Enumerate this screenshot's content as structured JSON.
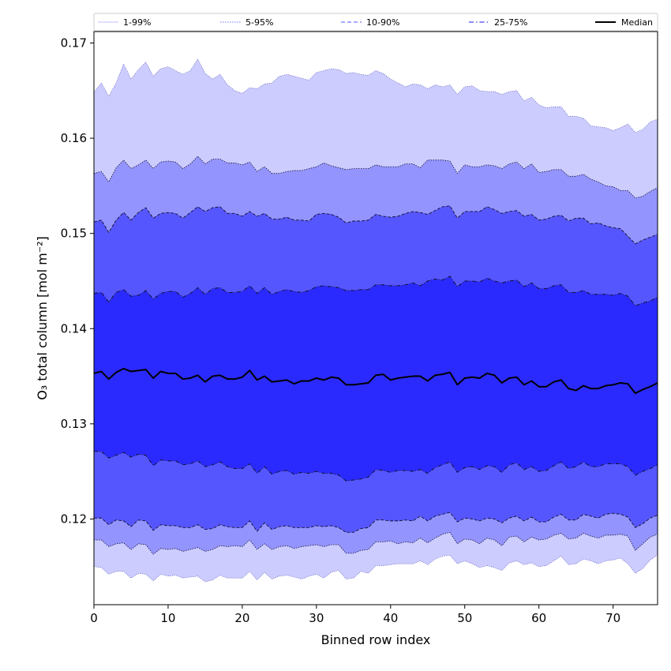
{
  "chart_data": {
    "type": "area",
    "title": "",
    "xlabel": "Binned row index",
    "ylabel": "O₃ total column [mol m⁻²]",
    "xlim": [
      0,
      76
    ],
    "ylim": [
      0.111,
      0.1712
    ],
    "xticks": [
      0,
      10,
      20,
      30,
      40,
      50,
      60,
      70
    ],
    "yticks": [
      0.12,
      0.13,
      0.14,
      0.15,
      0.16,
      0.17
    ],
    "ytick_labels": [
      "0.12",
      "0.13",
      "0.14",
      "0.15",
      "0.16",
      "0.17"
    ],
    "grid": false,
    "legend_position": "top",
    "legend": [
      "1-99%",
      "5-95%",
      "10-90%",
      "25-75%",
      "Median"
    ],
    "colors": {
      "band_1_99": "#ccccff",
      "band_5_95": "#9494ff",
      "band_10_90": "#5656ff",
      "band_25_75": "#2a2aff",
      "median": "#000000",
      "edge": "#111133"
    },
    "x_start": 0,
    "x_step": 1,
    "series": [
      {
        "name": "p99",
        "values": [
          0.1648,
          0.1658,
          0.1644,
          0.1658,
          0.1678,
          0.1662,
          0.1672,
          0.168,
          0.1665,
          0.1673,
          0.1675,
          0.1671,
          0.1667,
          0.1671,
          0.1683,
          0.1668,
          0.1662,
          0.1667,
          0.1656,
          0.165,
          0.1647,
          0.1653,
          0.1652,
          0.1657,
          0.1658,
          0.1665,
          0.1667,
          0.1665,
          0.1663,
          0.1661,
          0.1669,
          0.1671,
          0.1673,
          0.1672,
          0.1668,
          0.1669,
          0.1667,
          0.1666,
          0.1671,
          0.1668,
          0.1662,
          0.1658,
          0.1654,
          0.1657,
          0.1656,
          0.1652,
          0.1656,
          0.1654,
          0.1656,
          0.1646,
          0.1654,
          0.1655,
          0.165,
          0.1649,
          0.1649,
          0.1646,
          0.1649,
          0.165,
          0.1639,
          0.1643,
          0.1635,
          0.1632,
          0.1633,
          0.1633,
          0.1623,
          0.1623,
          0.1621,
          0.1613,
          0.1612,
          0.1611,
          0.1608,
          0.1611,
          0.1615,
          0.1606,
          0.1609,
          0.1617,
          0.162
        ]
      },
      {
        "name": "p95",
        "values": [
          0.1563,
          0.1565,
          0.1554,
          0.1569,
          0.1577,
          0.1568,
          0.1572,
          0.1577,
          0.1568,
          0.1575,
          0.1576,
          0.1575,
          0.1568,
          0.1573,
          0.1581,
          0.1573,
          0.1578,
          0.1578,
          0.1574,
          0.1574,
          0.1572,
          0.1575,
          0.1565,
          0.157,
          0.1563,
          0.1563,
          0.1565,
          0.1566,
          0.1566,
          0.1568,
          0.157,
          0.1574,
          0.1571,
          0.1569,
          0.1567,
          0.1568,
          0.1568,
          0.1568,
          0.1572,
          0.157,
          0.157,
          0.157,
          0.1573,
          0.1573,
          0.1569,
          0.1577,
          0.1577,
          0.1577,
          0.1576,
          0.1563,
          0.1572,
          0.157,
          0.157,
          0.1572,
          0.1571,
          0.1568,
          0.1573,
          0.1575,
          0.1568,
          0.1573,
          0.1564,
          0.1565,
          0.1567,
          0.1567,
          0.156,
          0.156,
          0.1562,
          0.1557,
          0.1554,
          0.155,
          0.1549,
          0.1545,
          0.1545,
          0.1537,
          0.1539,
          0.1544,
          0.1548
        ]
      },
      {
        "name": "p90",
        "values": [
          0.1512,
          0.1514,
          0.1501,
          0.1514,
          0.1522,
          0.1514,
          0.1522,
          0.1527,
          0.1516,
          0.1521,
          0.1522,
          0.1521,
          0.1516,
          0.1522,
          0.1528,
          0.1523,
          0.1527,
          0.1528,
          0.1521,
          0.1521,
          0.1518,
          0.1523,
          0.1518,
          0.1521,
          0.1515,
          0.1515,
          0.1517,
          0.1514,
          0.1514,
          0.1513,
          0.152,
          0.1521,
          0.152,
          0.1517,
          0.1511,
          0.1513,
          0.1513,
          0.1514,
          0.152,
          0.1518,
          0.1517,
          0.1518,
          0.1521,
          0.1523,
          0.1522,
          0.152,
          0.1524,
          0.1528,
          0.1529,
          0.1516,
          0.1523,
          0.1523,
          0.1523,
          0.1528,
          0.1525,
          0.1521,
          0.1523,
          0.1524,
          0.1518,
          0.152,
          0.1514,
          0.1515,
          0.1518,
          0.1519,
          0.1513,
          0.1516,
          0.1516,
          0.151,
          0.1511,
          0.1508,
          0.1506,
          0.1505,
          0.1497,
          0.1489,
          0.1493,
          0.1496,
          0.1499
        ]
      },
      {
        "name": "p75",
        "values": [
          0.1437,
          0.1438,
          0.1428,
          0.1438,
          0.1441,
          0.1434,
          0.1435,
          0.144,
          0.1431,
          0.1437,
          0.1439,
          0.1439,
          0.1433,
          0.1437,
          0.1443,
          0.1436,
          0.1442,
          0.1443,
          0.1438,
          0.1438,
          0.1439,
          0.1445,
          0.1437,
          0.1443,
          0.1436,
          0.1439,
          0.1441,
          0.1439,
          0.1438,
          0.144,
          0.1444,
          0.1445,
          0.1444,
          0.1443,
          0.144,
          0.144,
          0.1441,
          0.1441,
          0.1446,
          0.1446,
          0.1445,
          0.1445,
          0.1446,
          0.1448,
          0.1445,
          0.145,
          0.1452,
          0.1451,
          0.1455,
          0.1444,
          0.145,
          0.145,
          0.1449,
          0.1453,
          0.145,
          0.1448,
          0.145,
          0.1451,
          0.1444,
          0.1448,
          0.1442,
          0.1442,
          0.1445,
          0.1446,
          0.1438,
          0.1438,
          0.144,
          0.1436,
          0.1436,
          0.1436,
          0.1435,
          0.1437,
          0.1434,
          0.1424,
          0.1427,
          0.1429,
          0.1433
        ]
      },
      {
        "name": "median",
        "values": [
          0.1353,
          0.1355,
          0.1347,
          0.1354,
          0.1358,
          0.1355,
          0.1356,
          0.1357,
          0.1348,
          0.1355,
          0.1353,
          0.1353,
          0.1347,
          0.1348,
          0.1351,
          0.1344,
          0.135,
          0.1351,
          0.1347,
          0.1347,
          0.1349,
          0.1356,
          0.1346,
          0.135,
          0.1344,
          0.1345,
          0.1346,
          0.1342,
          0.1345,
          0.1345,
          0.1348,
          0.1346,
          0.1349,
          0.1348,
          0.1341,
          0.1341,
          0.1342,
          0.1343,
          0.1351,
          0.1352,
          0.1346,
          0.1348,
          0.1349,
          0.135,
          0.135,
          0.1345,
          0.1351,
          0.1352,
          0.1354,
          0.1341,
          0.1348,
          0.1349,
          0.1348,
          0.1353,
          0.1351,
          0.1343,
          0.1348,
          0.1349,
          0.1341,
          0.1345,
          0.1339,
          0.1339,
          0.1344,
          0.1346,
          0.1337,
          0.1335,
          0.134,
          0.1337,
          0.1337,
          0.134,
          0.1341,
          0.1343,
          0.1342,
          0.1332,
          0.1336,
          0.1339,
          0.1343
        ]
      },
      {
        "name": "p25",
        "values": [
          0.1271,
          0.1271,
          0.1264,
          0.1267,
          0.127,
          0.1265,
          0.1268,
          0.1267,
          0.1256,
          0.1262,
          0.1261,
          0.1261,
          0.1257,
          0.1258,
          0.1261,
          0.1255,
          0.1257,
          0.126,
          0.1255,
          0.1253,
          0.1253,
          0.1258,
          0.1248,
          0.1255,
          0.1247,
          0.125,
          0.1251,
          0.1247,
          0.1249,
          0.1248,
          0.125,
          0.1248,
          0.1248,
          0.1246,
          0.124,
          0.1241,
          0.1242,
          0.1244,
          0.1252,
          0.1251,
          0.1249,
          0.1251,
          0.1251,
          0.125,
          0.1252,
          0.1248,
          0.1254,
          0.1257,
          0.126,
          0.1249,
          0.1254,
          0.1255,
          0.1252,
          0.1256,
          0.1255,
          0.1249,
          0.1257,
          0.1259,
          0.1252,
          0.1255,
          0.125,
          0.1251,
          0.1256,
          0.126,
          0.1253,
          0.1255,
          0.126,
          0.1255,
          0.1255,
          0.1258,
          0.1258,
          0.1258,
          0.1255,
          0.1246,
          0.125,
          0.1253,
          0.1257
        ]
      },
      {
        "name": "p10",
        "values": [
          0.1201,
          0.1201,
          0.1194,
          0.1199,
          0.1198,
          0.1192,
          0.1199,
          0.1198,
          0.1188,
          0.1194,
          0.1193,
          0.1193,
          0.1191,
          0.1191,
          0.1194,
          0.1189,
          0.119,
          0.1194,
          0.1192,
          0.1191,
          0.1191,
          0.1198,
          0.1187,
          0.1196,
          0.1189,
          0.1192,
          0.1193,
          0.1191,
          0.1191,
          0.1191,
          0.1193,
          0.1192,
          0.1193,
          0.1191,
          0.1186,
          0.1186,
          0.119,
          0.1191,
          0.1199,
          0.1199,
          0.1198,
          0.1198,
          0.1199,
          0.1198,
          0.1203,
          0.1198,
          0.1203,
          0.1205,
          0.1207,
          0.1197,
          0.1201,
          0.12,
          0.1198,
          0.1201,
          0.12,
          0.1196,
          0.1201,
          0.1203,
          0.1198,
          0.1202,
          0.1197,
          0.1197,
          0.1202,
          0.1205,
          0.1199,
          0.1199,
          0.1205,
          0.1203,
          0.1201,
          0.1205,
          0.1206,
          0.1205,
          0.1202,
          0.1191,
          0.1195,
          0.1201,
          0.1204
        ]
      },
      {
        "name": "p5",
        "values": [
          0.1178,
          0.1178,
          0.1171,
          0.1174,
          0.1175,
          0.1168,
          0.1174,
          0.1173,
          0.1163,
          0.1169,
          0.1168,
          0.1169,
          0.1166,
          0.1168,
          0.117,
          0.1166,
          0.1168,
          0.1172,
          0.1171,
          0.1172,
          0.1171,
          0.1178,
          0.1168,
          0.1174,
          0.1168,
          0.1171,
          0.1172,
          0.1169,
          0.1171,
          0.1172,
          0.1173,
          0.1171,
          0.1173,
          0.1173,
          0.1164,
          0.1164,
          0.1167,
          0.1168,
          0.1176,
          0.1176,
          0.1177,
          0.1174,
          0.1176,
          0.1175,
          0.118,
          0.1175,
          0.118,
          0.1184,
          0.1186,
          0.1174,
          0.1179,
          0.1178,
          0.1174,
          0.118,
          0.1178,
          0.1172,
          0.1181,
          0.1182,
          0.1176,
          0.1181,
          0.1178,
          0.1179,
          0.1183,
          0.1185,
          0.1179,
          0.118,
          0.1185,
          0.1182,
          0.118,
          0.1183,
          0.1183,
          0.1184,
          0.1182,
          0.1167,
          0.1174,
          0.1181,
          0.1184
        ]
      },
      {
        "name": "p1",
        "values": [
          0.115,
          0.1149,
          0.1142,
          0.1145,
          0.1145,
          0.1138,
          0.1143,
          0.1142,
          0.1135,
          0.1142,
          0.114,
          0.1141,
          0.1138,
          0.1139,
          0.114,
          0.1134,
          0.1136,
          0.1141,
          0.1138,
          0.1138,
          0.1138,
          0.1145,
          0.1136,
          0.1144,
          0.1137,
          0.114,
          0.1141,
          0.1139,
          0.1137,
          0.114,
          0.1142,
          0.1138,
          0.1144,
          0.1146,
          0.1137,
          0.1138,
          0.1145,
          0.1143,
          0.1151,
          0.1151,
          0.1152,
          0.1153,
          0.1153,
          0.1153,
          0.1156,
          0.1152,
          0.1158,
          0.1161,
          0.1162,
          0.1153,
          0.1156,
          0.1153,
          0.1149,
          0.1151,
          0.1149,
          0.1146,
          0.1154,
          0.1156,
          0.1152,
          0.1154,
          0.115,
          0.1151,
          0.1156,
          0.1161,
          0.1152,
          0.1153,
          0.1158,
          0.1156,
          0.1153,
          0.1156,
          0.1157,
          0.1159,
          0.1153,
          0.1143,
          0.1148,
          0.1157,
          0.1162
        ]
      }
    ]
  }
}
